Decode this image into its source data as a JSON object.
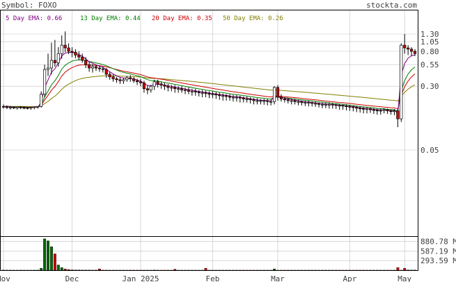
{
  "header": {
    "symbol_label": "Symbol: FOXO",
    "site": "stockta.com"
  },
  "legend": [
    {
      "label": "5 Day EMA: 0.66",
      "color": "#800080"
    },
    {
      "label": "13 Day EMA: 0.44",
      "color": "#008000"
    },
    {
      "label": "20 Day EMA: 0.35",
      "color": "#cc0000"
    },
    {
      "label": "50 Day EMA: 0.26",
      "color": "#808000"
    }
  ],
  "colors": {
    "up": "#ffffff",
    "down": "#cc0000",
    "wick": "#000000",
    "grid": "#c0c0c0",
    "volume_up": "#006600",
    "volume_down": "#cc0000"
  },
  "chart_data": [
    {
      "type": "candlestick",
      "scale": "log",
      "y_ticks": [
        "1.30",
        "1.05",
        "0.80",
        "0.55",
        "0.30",
        "0.05"
      ],
      "x_ticks": [
        "Nov",
        "Dec",
        "Jan 2025",
        "Feb",
        "Mar",
        "Apr",
        "May"
      ],
      "months": [
        {
          "label": "Nov",
          "start_index": 0
        },
        {
          "label": "Dec",
          "start_index": 20
        },
        {
          "label": "Jan 2025",
          "start_index": 40
        },
        {
          "label": "Feb",
          "start_index": 61
        },
        {
          "label": "Mar",
          "start_index": 80
        },
        {
          "label": "Apr",
          "start_index": 101
        },
        {
          "label": "May",
          "start_index": 117
        }
      ],
      "candles_o": [
        0.17,
        0.168,
        0.165,
        0.166,
        0.163,
        0.167,
        0.165,
        0.164,
        0.163,
        0.166,
        0.168,
        0.17,
        0.24,
        0.48,
        0.5,
        0.62,
        0.58,
        0.75,
        0.95,
        0.88,
        0.8,
        0.78,
        0.72,
        0.68,
        0.62,
        0.55,
        0.5,
        0.52,
        0.5,
        0.49,
        0.48,
        0.42,
        0.39,
        0.37,
        0.36,
        0.35,
        0.36,
        0.38,
        0.37,
        0.35,
        0.34,
        0.33,
        0.28,
        0.27,
        0.3,
        0.34,
        0.32,
        0.31,
        0.3,
        0.29,
        0.29,
        0.28,
        0.28,
        0.27,
        0.27,
        0.26,
        0.26,
        0.255,
        0.25,
        0.25,
        0.245,
        0.24,
        0.24,
        0.235,
        0.23,
        0.23,
        0.225,
        0.22,
        0.22,
        0.22,
        0.215,
        0.21,
        0.21,
        0.205,
        0.2,
        0.2,
        0.2,
        0.2,
        0.195,
        0.195,
        0.29,
        0.22,
        0.21,
        0.205,
        0.2,
        0.2,
        0.195,
        0.195,
        0.19,
        0.19,
        0.19,
        0.185,
        0.185,
        0.18,
        0.18,
        0.18,
        0.18,
        0.178,
        0.175,
        0.175,
        0.172,
        0.17,
        0.168,
        0.165,
        0.162,
        0.16,
        0.158,
        0.16,
        0.155,
        0.153,
        0.15,
        0.152,
        0.155,
        0.15,
        0.148,
        0.15,
        0.12,
        0.95,
        0.88,
        0.85,
        0.8
      ],
      "candles_h": [
        0.18,
        0.175,
        0.172,
        0.17,
        0.17,
        0.172,
        0.17,
        0.168,
        0.168,
        0.17,
        0.172,
        0.26,
        0.55,
        0.75,
        1.02,
        1.1,
        0.9,
        1.25,
        1.4,
        1.0,
        0.9,
        0.85,
        0.8,
        0.75,
        0.68,
        0.6,
        0.56,
        0.55,
        0.54,
        0.52,
        0.5,
        0.45,
        0.42,
        0.39,
        0.38,
        0.38,
        0.4,
        0.41,
        0.39,
        0.37,
        0.37,
        0.35,
        0.31,
        0.31,
        0.36,
        0.36,
        0.34,
        0.33,
        0.32,
        0.31,
        0.31,
        0.3,
        0.3,
        0.29,
        0.29,
        0.28,
        0.28,
        0.27,
        0.27,
        0.265,
        0.26,
        0.26,
        0.255,
        0.25,
        0.245,
        0.24,
        0.24,
        0.235,
        0.235,
        0.23,
        0.225,
        0.225,
        0.22,
        0.215,
        0.215,
        0.21,
        0.21,
        0.21,
        0.205,
        0.3,
        0.31,
        0.24,
        0.22,
        0.215,
        0.21,
        0.21,
        0.205,
        0.2,
        0.2,
        0.2,
        0.195,
        0.195,
        0.19,
        0.19,
        0.19,
        0.19,
        0.188,
        0.185,
        0.182,
        0.18,
        0.18,
        0.178,
        0.175,
        0.172,
        0.17,
        0.168,
        0.168,
        0.165,
        0.162,
        0.16,
        0.16,
        0.162,
        0.16,
        0.156,
        0.158,
        0.158,
        1.0,
        1.3,
        0.95,
        0.9,
        0.85
      ],
      "candles_l": [
        0.16,
        0.158,
        0.156,
        0.158,
        0.156,
        0.158,
        0.157,
        0.156,
        0.155,
        0.157,
        0.16,
        0.165,
        0.22,
        0.4,
        0.42,
        0.52,
        0.52,
        0.65,
        0.78,
        0.74,
        0.68,
        0.66,
        0.62,
        0.58,
        0.5,
        0.45,
        0.44,
        0.46,
        0.45,
        0.44,
        0.38,
        0.36,
        0.34,
        0.33,
        0.32,
        0.32,
        0.34,
        0.34,
        0.33,
        0.31,
        0.3,
        0.25,
        0.24,
        0.25,
        0.27,
        0.29,
        0.28,
        0.27,
        0.26,
        0.26,
        0.25,
        0.25,
        0.25,
        0.24,
        0.24,
        0.23,
        0.23,
        0.225,
        0.22,
        0.22,
        0.215,
        0.215,
        0.21,
        0.205,
        0.2,
        0.2,
        0.2,
        0.195,
        0.195,
        0.19,
        0.19,
        0.19,
        0.185,
        0.18,
        0.18,
        0.18,
        0.178,
        0.175,
        0.175,
        0.18,
        0.2,
        0.195,
        0.19,
        0.185,
        0.18,
        0.18,
        0.175,
        0.175,
        0.172,
        0.17,
        0.17,
        0.168,
        0.165,
        0.162,
        0.162,
        0.16,
        0.16,
        0.158,
        0.155,
        0.155,
        0.152,
        0.15,
        0.148,
        0.145,
        0.143,
        0.14,
        0.14,
        0.142,
        0.138,
        0.135,
        0.135,
        0.14,
        0.138,
        0.135,
        0.133,
        0.095,
        0.11,
        0.75,
        0.72,
        0.7,
        0.7
      ],
      "candles_c": [
        0.168,
        0.165,
        0.166,
        0.163,
        0.167,
        0.165,
        0.164,
        0.163,
        0.166,
        0.168,
        0.17,
        0.24,
        0.48,
        0.5,
        0.62,
        0.58,
        0.75,
        0.95,
        0.88,
        0.8,
        0.78,
        0.72,
        0.68,
        0.62,
        0.55,
        0.5,
        0.52,
        0.5,
        0.49,
        0.48,
        0.42,
        0.39,
        0.37,
        0.36,
        0.35,
        0.36,
        0.38,
        0.37,
        0.35,
        0.34,
        0.33,
        0.28,
        0.27,
        0.3,
        0.34,
        0.32,
        0.31,
        0.3,
        0.29,
        0.29,
        0.28,
        0.28,
        0.27,
        0.27,
        0.26,
        0.26,
        0.255,
        0.25,
        0.25,
        0.245,
        0.24,
        0.24,
        0.235,
        0.23,
        0.23,
        0.225,
        0.22,
        0.22,
        0.22,
        0.215,
        0.21,
        0.21,
        0.205,
        0.2,
        0.2,
        0.2,
        0.2,
        0.195,
        0.195,
        0.29,
        0.22,
        0.21,
        0.205,
        0.2,
        0.2,
        0.195,
        0.195,
        0.19,
        0.19,
        0.19,
        0.185,
        0.185,
        0.18,
        0.18,
        0.18,
        0.18,
        0.178,
        0.175,
        0.175,
        0.172,
        0.17,
        0.168,
        0.165,
        0.162,
        0.16,
        0.158,
        0.16,
        0.155,
        0.153,
        0.15,
        0.152,
        0.155,
        0.15,
        0.148,
        0.15,
        0.12,
        0.95,
        0.88,
        0.85,
        0.8,
        0.75
      ],
      "volume_ticks": [
        "880.78 M",
        "587.19 M",
        "293.59 M"
      ],
      "volume": [
        4,
        3,
        3,
        2,
        2,
        3,
        2,
        2,
        2,
        3,
        4,
        60,
        960,
        900,
        720,
        500,
        160,
        80,
        40,
        20,
        10,
        8,
        8,
        6,
        5,
        4,
        3,
        4,
        40,
        3,
        3,
        2,
        2,
        2,
        2,
        2,
        2,
        3,
        2,
        2,
        2,
        2,
        2,
        2,
        6,
        3,
        2,
        2,
        2,
        2,
        30,
        2,
        2,
        2,
        2,
        2,
        2,
        2,
        2,
        60,
        2,
        2,
        2,
        2,
        2,
        2,
        2,
        2,
        2,
        2,
        2,
        2,
        2,
        2,
        2,
        2,
        2,
        2,
        2,
        40,
        2,
        2,
        2,
        2,
        2,
        2,
        2,
        2,
        2,
        2,
        2,
        2,
        2,
        2,
        2,
        2,
        2,
        2,
        2,
        2,
        2,
        2,
        2,
        2,
        2,
        2,
        2,
        2,
        2,
        2,
        2,
        2,
        2,
        2,
        2,
        80,
        2,
        60,
        8,
        6,
        5
      ],
      "ema5": [
        0.17,
        0.169,
        0.168,
        0.166,
        0.166,
        0.166,
        0.165,
        0.164,
        0.165,
        0.166,
        0.167,
        0.191,
        0.287,
        0.358,
        0.445,
        0.49,
        0.577,
        0.701,
        0.761,
        0.774,
        0.776,
        0.757,
        0.731,
        0.694,
        0.646,
        0.597,
        0.572,
        0.548,
        0.528,
        0.512,
        0.481,
        0.451,
        0.424,
        0.403,
        0.385,
        0.377,
        0.378,
        0.375,
        0.367,
        0.358,
        0.348,
        0.326,
        0.307,
        0.305,
        0.316,
        0.317,
        0.315,
        0.31,
        0.303,
        0.299,
        0.292,
        0.288,
        0.282,
        0.278,
        0.272,
        0.268,
        0.264,
        0.259,
        0.256,
        0.252,
        0.248,
        0.245,
        0.242,
        0.238,
        0.235,
        0.232,
        0.228,
        0.225,
        0.223,
        0.221,
        0.217,
        0.215,
        0.211,
        0.208,
        0.205,
        0.203,
        0.202,
        0.2,
        0.198,
        0.228,
        0.226,
        0.221,
        0.215,
        0.21,
        0.207,
        0.203,
        0.2,
        0.197,
        0.194,
        0.193,
        0.19,
        0.188,
        0.186,
        0.184,
        0.182,
        0.181,
        0.18,
        0.178,
        0.177,
        0.175,
        0.173,
        0.171,
        0.169,
        0.167,
        0.164,
        0.162,
        0.161,
        0.159,
        0.157,
        0.155,
        0.154,
        0.154,
        0.153,
        0.151,
        0.151,
        0.141,
        0.41,
        0.567,
        0.661,
        0.707,
        0.722
      ],
      "ema13": [
        0.17,
        0.17,
        0.169,
        0.169,
        0.168,
        0.168,
        0.168,
        0.167,
        0.167,
        0.167,
        0.167,
        0.178,
        0.221,
        0.261,
        0.312,
        0.35,
        0.407,
        0.484,
        0.541,
        0.578,
        0.607,
        0.623,
        0.631,
        0.629,
        0.618,
        0.601,
        0.59,
        0.577,
        0.565,
        0.552,
        0.533,
        0.512,
        0.492,
        0.473,
        0.455,
        0.442,
        0.433,
        0.424,
        0.413,
        0.403,
        0.392,
        0.376,
        0.361,
        0.352,
        0.35,
        0.346,
        0.34,
        0.334,
        0.328,
        0.322,
        0.316,
        0.311,
        0.305,
        0.3,
        0.294,
        0.289,
        0.284,
        0.279,
        0.275,
        0.27,
        0.266,
        0.262,
        0.258,
        0.254,
        0.251,
        0.247,
        0.243,
        0.24,
        0.237,
        0.234,
        0.231,
        0.228,
        0.225,
        0.221,
        0.218,
        0.216,
        0.214,
        0.211,
        0.209,
        0.221,
        0.221,
        0.219,
        0.217,
        0.215,
        0.212,
        0.21,
        0.207,
        0.205,
        0.203,
        0.201,
        0.199,
        0.196,
        0.194,
        0.192,
        0.19,
        0.188,
        0.186,
        0.184,
        0.182,
        0.181,
        0.179,
        0.176,
        0.174,
        0.172,
        0.17,
        0.168,
        0.167,
        0.165,
        0.163,
        0.161,
        0.16,
        0.159,
        0.157,
        0.156,
        0.155,
        0.149,
        0.263,
        0.351,
        0.422,
        0.476,
        0.515
      ],
      "ema20": [
        0.17,
        0.17,
        0.17,
        0.169,
        0.169,
        0.169,
        0.168,
        0.168,
        0.168,
        0.168,
        0.168,
        0.175,
        0.204,
        0.232,
        0.269,
        0.298,
        0.341,
        0.399,
        0.445,
        0.479,
        0.507,
        0.527,
        0.542,
        0.549,
        0.549,
        0.545,
        0.542,
        0.538,
        0.533,
        0.528,
        0.518,
        0.506,
        0.493,
        0.48,
        0.468,
        0.458,
        0.45,
        0.443,
        0.434,
        0.425,
        0.416,
        0.403,
        0.39,
        0.381,
        0.377,
        0.371,
        0.366,
        0.36,
        0.353,
        0.347,
        0.341,
        0.335,
        0.329,
        0.323,
        0.318,
        0.312,
        0.307,
        0.302,
        0.297,
        0.292,
        0.287,
        0.283,
        0.278,
        0.274,
        0.27,
        0.265,
        0.261,
        0.257,
        0.254,
        0.25,
        0.247,
        0.243,
        0.24,
        0.236,
        0.233,
        0.23,
        0.227,
        0.224,
        0.222,
        0.228,
        0.227,
        0.226,
        0.224,
        0.222,
        0.22,
        0.218,
        0.216,
        0.213,
        0.211,
        0.209,
        0.207,
        0.205,
        0.203,
        0.2,
        0.198,
        0.196,
        0.194,
        0.192,
        0.19,
        0.189,
        0.187,
        0.185,
        0.183,
        0.181,
        0.179,
        0.177,
        0.175,
        0.174,
        0.172,
        0.17,
        0.169,
        0.167,
        0.166,
        0.164,
        0.163,
        0.159,
        0.234,
        0.295,
        0.347,
        0.39,
        0.424
      ],
      "ema50": [
        0.17,
        0.17,
        0.17,
        0.17,
        0.17,
        0.17,
        0.17,
        0.169,
        0.169,
        0.169,
        0.169,
        0.172,
        0.184,
        0.196,
        0.213,
        0.227,
        0.248,
        0.275,
        0.299,
        0.318,
        0.336,
        0.351,
        0.364,
        0.374,
        0.381,
        0.386,
        0.391,
        0.395,
        0.399,
        0.402,
        0.403,
        0.403,
        0.402,
        0.401,
        0.399,
        0.397,
        0.396,
        0.395,
        0.393,
        0.391,
        0.388,
        0.384,
        0.379,
        0.376,
        0.374,
        0.372,
        0.37,
        0.367,
        0.364,
        0.361,
        0.358,
        0.355,
        0.352,
        0.349,
        0.346,
        0.343,
        0.34,
        0.336,
        0.333,
        0.33,
        0.326,
        0.323,
        0.32,
        0.316,
        0.313,
        0.309,
        0.306,
        0.303,
        0.3,
        0.297,
        0.293,
        0.29,
        0.287,
        0.284,
        0.281,
        0.278,
        0.275,
        0.272,
        0.269,
        0.27,
        0.268,
        0.267,
        0.265,
        0.263,
        0.261,
        0.259,
        0.257,
        0.255,
        0.253,
        0.251,
        0.249,
        0.247,
        0.245,
        0.243,
        0.241,
        0.239,
        0.237,
        0.235,
        0.233,
        0.231,
        0.229,
        0.227,
        0.225,
        0.223,
        0.221,
        0.219,
        0.217,
        0.215,
        0.213,
        0.211,
        0.209,
        0.207,
        0.205,
        0.203,
        0.202,
        0.198,
        0.228,
        0.253,
        0.276,
        0.296,
        0.313
      ]
    }
  ]
}
